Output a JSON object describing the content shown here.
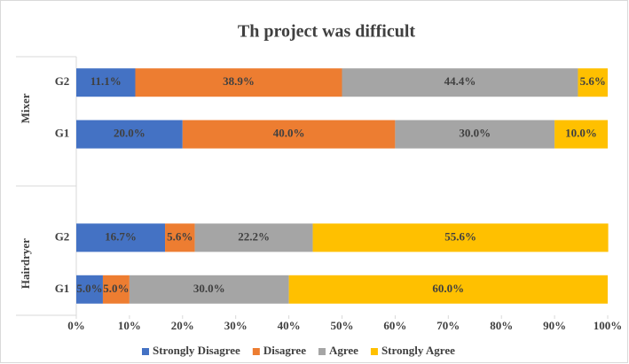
{
  "chart_data": {
    "type": "stacked_bar_horizontal",
    "title": "Th project was difficult",
    "category_groups": [
      {
        "name": "Mixer",
        "categories": [
          "G2",
          "G1"
        ]
      },
      {
        "name": "Hairdryer",
        "categories": [
          "G2",
          "G1"
        ]
      }
    ],
    "series": [
      {
        "name": "Strongly Disagree",
        "color": "#4472c4",
        "values": [
          11.1,
          20.0,
          16.7,
          5.0
        ],
        "value_labels": [
          "11.1%",
          "20.0%",
          "16.7%",
          "5.0%"
        ]
      },
      {
        "name": "Disagree",
        "color": "#ed7d31",
        "values": [
          38.9,
          40.0,
          5.6,
          5.0
        ],
        "value_labels": [
          "38.9%",
          "40.0%",
          "5.6%",
          "5.0%"
        ]
      },
      {
        "name": "Agree",
        "color": "#a5a5a5",
        "values": [
          44.4,
          30.0,
          22.2,
          30.0
        ],
        "value_labels": [
          "44.4%",
          "30.0%",
          "22.2%",
          "30.0%"
        ]
      },
      {
        "name": "Strongly Agree",
        "color": "#ffc000",
        "values": [
          5.6,
          10.0,
          55.6,
          60.0
        ],
        "value_labels": [
          "5.6%",
          "10.0%",
          "55.6%",
          "60.0%"
        ]
      }
    ],
    "xlim": [
      0,
      100
    ],
    "xticks": [
      {
        "value": 0,
        "label": "0%"
      },
      {
        "value": 10,
        "label": "10%"
      },
      {
        "value": 20,
        "label": "20%"
      },
      {
        "value": 30,
        "label": "30%"
      },
      {
        "value": 40,
        "label": "40%"
      },
      {
        "value": 50,
        "label": "50%"
      },
      {
        "value": 60,
        "label": "60%"
      },
      {
        "value": 70,
        "label": "70%"
      },
      {
        "value": 80,
        "label": "80%"
      },
      {
        "value": 90,
        "label": "90%"
      },
      {
        "value": 100,
        "label": "100%"
      }
    ],
    "legend": "bottom"
  }
}
